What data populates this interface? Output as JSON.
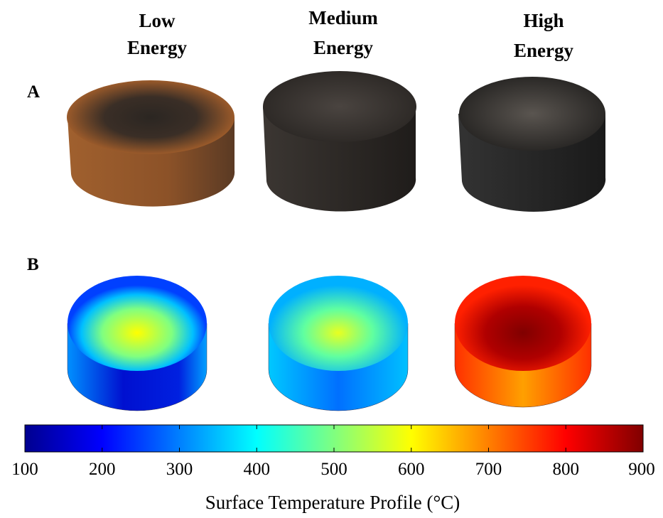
{
  "headers": [
    [
      "Low",
      "Energy"
    ],
    [
      "Medium",
      "Energy"
    ],
    [
      "High",
      "Energy"
    ]
  ],
  "panels": [
    "A",
    "B"
  ],
  "colorbar": {
    "lim": [
      100,
      900
    ],
    "ticks": [
      100,
      200,
      300,
      400,
      500,
      600,
      700,
      800,
      900
    ],
    "label": "Surface Temperature Profile (°C)"
  }
}
